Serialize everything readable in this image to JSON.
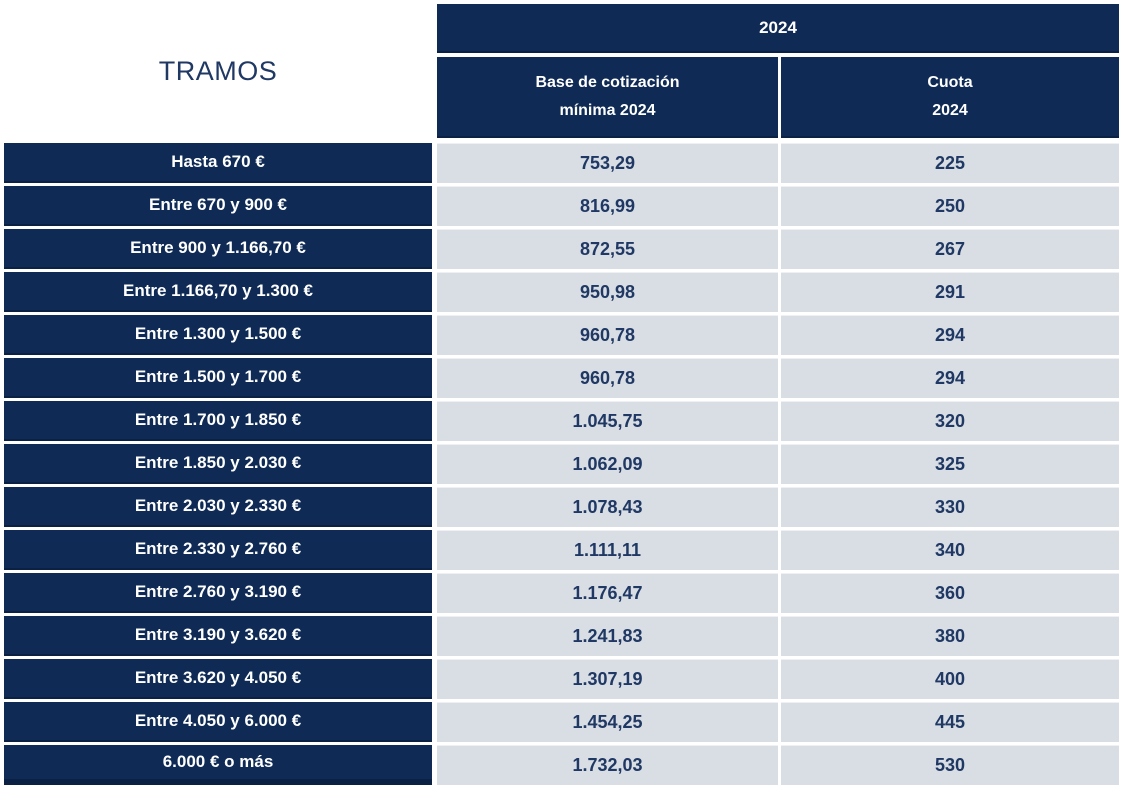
{
  "chart_data": {
    "type": "table",
    "corner_title": "TRAMOS",
    "year_span_header": "2024",
    "column_headers": {
      "base_line1": "Base de cotización",
      "base_line2": "mínima 2024",
      "cuota_line1": "Cuota",
      "cuota_line2": "2024"
    },
    "columns": [
      "TRAMOS",
      "Base de cotización mínima 2024",
      "Cuota 2024"
    ],
    "rows": [
      {
        "tramo": "Hasta 670 €",
        "base": "753,29",
        "cuota": "225"
      },
      {
        "tramo": "Entre 670 y 900 €",
        "base": "816,99",
        "cuota": "250"
      },
      {
        "tramo": "Entre 900 y 1.166,70 €",
        "base": "872,55",
        "cuota": "267"
      },
      {
        "tramo": "Entre 1.166,70 y 1.300 €",
        "base": "950,98",
        "cuota": "291"
      },
      {
        "tramo": "Entre 1.300 y 1.500 €",
        "base": "960,78",
        "cuota": "294"
      },
      {
        "tramo": "Entre 1.500 y 1.700 €",
        "base": "960,78",
        "cuota": "294"
      },
      {
        "tramo": "Entre 1.700 y 1.850 €",
        "base": "1.045,75",
        "cuota": "320"
      },
      {
        "tramo": "Entre 1.850 y 2.030 €",
        "base": "1.062,09",
        "cuota": "325"
      },
      {
        "tramo": "Entre 2.030 y 2.330 €",
        "base": "1.078,43",
        "cuota": "330"
      },
      {
        "tramo": "Entre 2.330 y 2.760 €",
        "base": "1.111,11",
        "cuota": "340"
      },
      {
        "tramo": "Entre 2.760 y 3.190 €",
        "base": "1.176,47",
        "cuota": "360"
      },
      {
        "tramo": "Entre 3.190 y 3.620 €",
        "base": "1.241,83",
        "cuota": "380"
      },
      {
        "tramo": "Entre 3.620 y 4.050 €",
        "base": "1.307,19",
        "cuota": "400"
      },
      {
        "tramo": "Entre 4.050 y 6.000 €",
        "base": "1.454,25",
        "cuota": "445"
      },
      {
        "tramo": "6.000 € o más",
        "base": "1.732,03",
        "cuota": "530"
      }
    ],
    "colors": {
      "navy": "#0f2b55",
      "navy_dark_edge": "#0a2143",
      "cell_background": "#d9dde4",
      "value_text": "#1f3864",
      "header_text": "#ffffff"
    },
    "layout": {
      "grid_lines": "white gaps",
      "legend": "none"
    }
  }
}
